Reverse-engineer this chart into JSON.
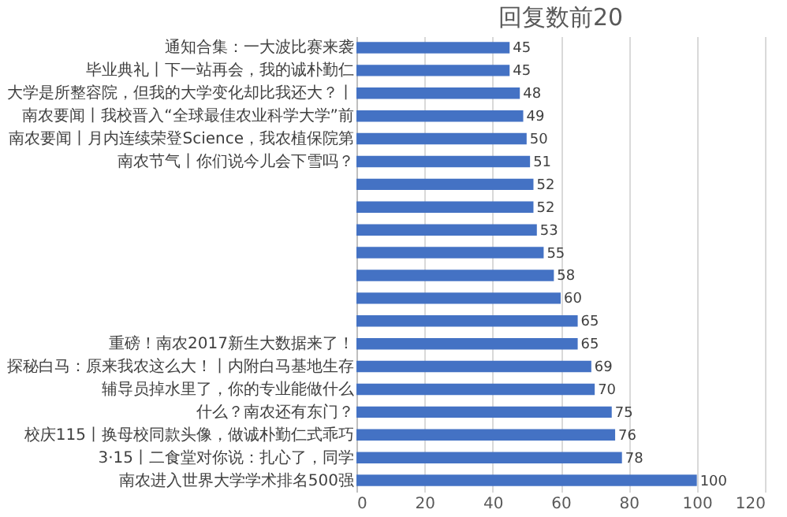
{
  "chart_data": {
    "type": "bar",
    "orientation": "horizontal",
    "title": "回复数前20",
    "categories": [
      "通知合集：一大波比赛来袭",
      "毕业典礼丨下一站再会，我的诚朴勤仁",
      "大学是所整容院，但我的大学变化却比我还大？丨",
      "南农要闻丨我校晋入“全球最佳农业科学大学”前",
      "南农要闻丨月内连续荣登Science，我农植保院第",
      "南农节气丨你们说今儿会下雪吗？",
      null,
      null,
      null,
      null,
      null,
      null,
      null,
      "重磅！南农2017新生大数据来了！",
      "探秘白马：原来我农这么大！丨内附白马基地生存",
      "辅导员掉水里了，你的专业能做什么",
      "什么？南农还有东门？",
      "校庆115丨换母校同款头像，做诚朴勤仁式乖巧",
      "3·15丨二食堂对你说：扎心了，同学",
      "南农进入世界大学学术排名500强"
    ],
    "values": [
      45,
      45,
      48,
      49,
      50,
      51,
      52,
      52,
      53,
      55,
      58,
      60,
      65,
      65,
      69,
      70,
      75,
      76,
      78,
      100
    ],
    "color": "#4472c4",
    "xlim": [
      0,
      120
    ],
    "xticks": [
      0,
      20,
      40,
      60,
      80,
      100,
      120
    ],
    "grid": "x",
    "data_labels": true
  }
}
